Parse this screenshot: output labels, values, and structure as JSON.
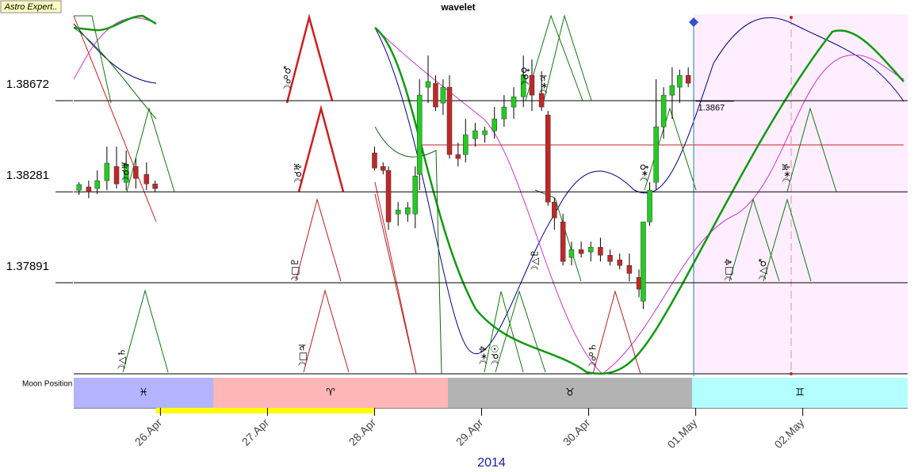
{
  "app_label": "Astro Expert..",
  "chart_data": {
    "type": "candlestick",
    "title": "wavelet",
    "xlabel": "2014",
    "x": [
      -0.76,
      -0.67,
      -0.59,
      -0.5,
      -0.41,
      -0.32,
      -0.23,
      -0.13,
      -0.05,
      2.0,
      2.08,
      2.13,
      2.22,
      2.31,
      2.38,
      2.42,
      2.5,
      2.57,
      2.64,
      2.7,
      2.78,
      2.85,
      2.94,
      3.03,
      3.12,
      3.21,
      3.3,
      3.39,
      3.47,
      3.56,
      3.62,
      3.68,
      3.76,
      3.84,
      3.93,
      4.02,
      4.11,
      4.2,
      4.29,
      4.38,
      4.47,
      4.51,
      4.57,
      4.63,
      4.7,
      4.78,
      4.85,
      4.93
    ],
    "open": [
      1.38288,
      1.38302,
      1.38295,
      1.38329,
      1.3839,
      1.38322,
      1.3839,
      1.38356,
      1.38315,
      1.38448,
      1.3839,
      1.38373,
      1.38186,
      1.38186,
      1.38186,
      1.38356,
      1.3873,
      1.38747,
      1.38662,
      1.3873,
      1.38441,
      1.38441,
      1.38509,
      1.38526,
      1.38543,
      1.38594,
      1.38645,
      1.38689,
      1.38781,
      1.38703,
      1.38611,
      1.38237,
      1.38152,
      1.37999,
      1.38033,
      1.38023,
      1.38043,
      1.38009,
      1.37989,
      1.37965,
      1.37914,
      1.37812,
      1.38152,
      1.38322,
      1.3856,
      1.38696,
      1.3873,
      1.38781
    ],
    "high": [
      1.38322,
      1.38329,
      1.38373,
      1.38475,
      1.38475,
      1.38458,
      1.38424,
      1.38407,
      1.38329,
      1.38475,
      1.38407,
      1.3839,
      1.38237,
      1.38237,
      1.3839,
      1.38764,
      1.38866,
      1.38781,
      1.38764,
      1.38781,
      1.38492,
      1.38594,
      1.38577,
      1.3856,
      1.38645,
      1.38696,
      1.3873,
      1.38866,
      1.38849,
      1.38798,
      1.38628,
      1.38254,
      1.38186,
      1.38067,
      1.38067,
      1.38067,
      1.38084,
      1.38033,
      1.38016,
      1.38016,
      1.37948,
      1.38152,
      1.38322,
      1.38764,
      1.3873,
      1.38815,
      1.38805,
      1.38815
    ],
    "low": [
      1.38268,
      1.38254,
      1.38271,
      1.38288,
      1.38295,
      1.38288,
      1.38295,
      1.38288,
      1.38281,
      1.38373,
      1.38356,
      1.38118,
      1.38135,
      1.38152,
      1.38125,
      1.38288,
      1.38662,
      1.38628,
      1.38611,
      1.38424,
      1.3839,
      1.38407,
      1.38475,
      1.38492,
      1.38509,
      1.3856,
      1.38594,
      1.38645,
      1.38628,
      1.38628,
      1.3822,
      1.38118,
      1.37965,
      1.37965,
      1.37999,
      1.37982,
      1.37982,
      1.37965,
      1.37948,
      1.37897,
      1.37829,
      1.37778,
      1.38135,
      1.38288,
      1.38509,
      1.38594,
      1.38662,
      1.3873
    ],
    "close": [
      1.38312,
      1.38281,
      1.38329,
      1.38404,
      1.38315,
      1.384,
      1.38339,
      1.38315,
      1.38295,
      1.38383,
      1.38373,
      1.38152,
      1.38203,
      1.38213,
      1.38349,
      1.38696,
      1.38754,
      1.38645,
      1.3873,
      1.38441,
      1.38424,
      1.38526,
      1.38543,
      1.38543,
      1.38594,
      1.38645,
      1.38689,
      1.38781,
      1.38696,
      1.38645,
      1.38237,
      1.38169,
      1.37982,
      1.38033,
      1.38016,
      1.38043,
      1.38009,
      1.37982,
      1.37965,
      1.37931,
      1.37863,
      1.38152,
      1.38288,
      1.3856,
      1.38696,
      1.38737,
      1.38781,
      1.38747
    ],
    "up_color": "#22cc22",
    "down_color": "#c02828",
    "ylim": [
      1.375,
      1.39043
    ],
    "yticks": [
      1.38672,
      1.38281,
      1.37891
    ],
    "xlim": [
      -0.81,
      6.98
    ],
    "xticks": [
      {
        "value": 0,
        "label": "26.Apr"
      },
      {
        "value": 1,
        "label": "27.Apr"
      },
      {
        "value": 2,
        "label": "28.Apr"
      },
      {
        "value": 3,
        "label": "29.Apr"
      },
      {
        "value": 4,
        "label": "30.Apr"
      },
      {
        "value": 5,
        "label": "01.May"
      },
      {
        "value": 6,
        "label": "02.May"
      }
    ],
    "last_price": 1.3867,
    "now": 5.0,
    "annotations": [
      {
        "label": "☽△♄",
        "x": -0.36
      },
      {
        "label": "☽☌♅",
        "x": -0.32
      },
      {
        "label": "☽☍♂",
        "x": 1.19
      },
      {
        "label": "☽☌♅",
        "x": 1.29
      },
      {
        "label": "☽□♇",
        "x": 1.26
      },
      {
        "label": "☽□♃",
        "x": 1.33
      },
      {
        "label": "☽⚹♆",
        "x": 3.02
      },
      {
        "label": "☽☌☉",
        "x": 3.13
      },
      {
        "label": "☽☌♀",
        "x": 3.41
      },
      {
        "label": "☽⚹♃",
        "x": 3.58
      },
      {
        "label": "☽△♇",
        "x": 3.5
      },
      {
        "label": "☽☍♄",
        "x": 4.04
      },
      {
        "label": "☽⚹♀",
        "x": 4.52
      },
      {
        "label": "☽□♆",
        "x": 5.31
      },
      {
        "label": "☽△♂",
        "x": 5.63
      },
      {
        "label": "☽⚹♅",
        "x": 5.85
      }
    ],
    "moon_position": {
      "label": "Moon Position",
      "signs": [
        "♓",
        "♈",
        "♉",
        "♊"
      ]
    }
  }
}
